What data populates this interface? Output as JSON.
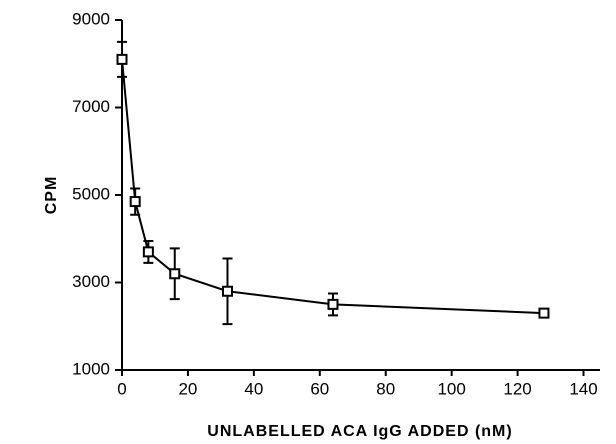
{
  "chart_data": {
    "type": "line",
    "xlabel": "UNLABELLED ACA IgG ADDED (nM)",
    "ylabel": "CPM",
    "x": [
      0,
      4,
      8,
      16,
      32,
      64,
      128
    ],
    "series": [
      {
        "values": [
          8100,
          4850,
          3700,
          3200,
          2800,
          2500,
          2300
        ],
        "errors": [
          400,
          300,
          250,
          580,
          750,
          250,
          80
        ],
        "color": "#000000"
      }
    ],
    "xlim": [
      0,
      145
    ],
    "xticks": [
      0,
      20,
      40,
      60,
      80,
      100,
      120,
      140
    ],
    "ylim": [
      1000,
      9000
    ],
    "yticks": [
      1000,
      3000,
      5000,
      7000,
      9000
    ]
  }
}
